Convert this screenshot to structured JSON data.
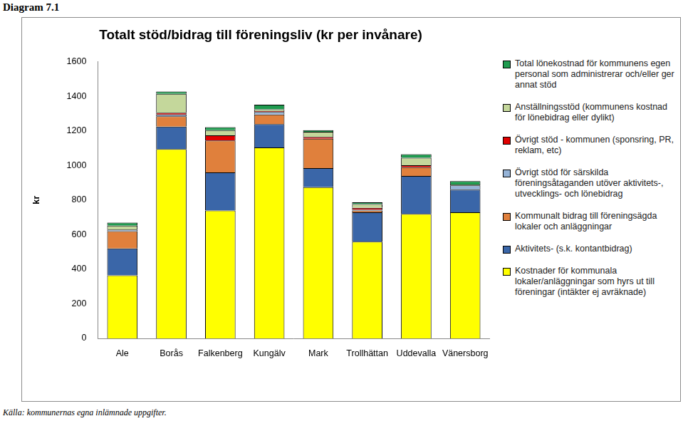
{
  "caption": "Diagram 7.1",
  "source": "Källa: kommunernas egna inlämnade uppgifter.",
  "chart_data": {
    "type": "bar",
    "title": "Totalt stöd/bidrag till föreningsliv (kr per invånare)",
    "y_label": "kr",
    "categories": [
      "Ale",
      "Borås",
      "Falkenberg",
      "Kungälv",
      "Mark",
      "Trollhättan",
      "Uddevalla",
      "Vänersborg"
    ],
    "stacked": true,
    "grid": false,
    "legend": "right",
    "ylim": [
      0,
      1600
    ],
    "yticks": [
      0,
      200,
      400,
      600,
      800,
      1000,
      1200,
      1400,
      1600
    ],
    "series": [
      {
        "name": "Kostnader för kommunala lokaler/anläggningar som hyrs ut till föreningar (intäkter ej avräknade)",
        "color": "#ffff00",
        "values": [
          365,
          1095,
          740,
          1105,
          875,
          560,
          720,
          730
        ]
      },
      {
        "name": "Aktivitets- (s.k. kontantbidrag)",
        "color": "#3a66a8",
        "values": [
          155,
          130,
          220,
          135,
          110,
          170,
          220,
          130
        ]
      },
      {
        "name": "Kommunalt bidrag till föreningsägda lokaler och anläggningar",
        "color": "#e0803c",
        "values": [
          100,
          60,
          185,
          55,
          170,
          10,
          50,
          0
        ]
      },
      {
        "name": "Övrigt stöd för särskilda föreningsåtaganden utöver aktivitets-, utvecklings- och lönebidrag",
        "color": "#95b3d7",
        "values": [
          10,
          10,
          0,
          15,
          0,
          5,
          0,
          25
        ]
      },
      {
        "name": "Övrigt stöd - kommunen (sponsring, PR, reklam, etc)",
        "color": "#e00000",
        "values": [
          0,
          10,
          30,
          5,
          10,
          10,
          12,
          0
        ]
      },
      {
        "name": "Anställningsstöd (kommunens kostnad för lönebidrag eller dylikt)",
        "color": "#c4d79b",
        "values": [
          22,
          110,
          30,
          10,
          30,
          22,
          43,
          5
        ]
      },
      {
        "name": "Total lönekostnad för kommunens egen personal som administrerar och/eller ger annat stöd",
        "color": "#1f9b4f",
        "values": [
          18,
          13,
          17,
          27,
          10,
          10,
          20,
          20
        ]
      }
    ]
  }
}
